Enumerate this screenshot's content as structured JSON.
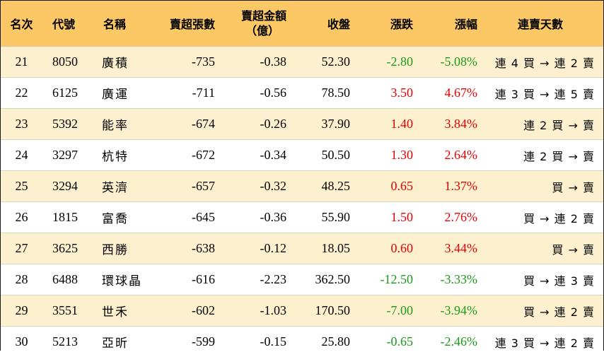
{
  "colors": {
    "header_bg": "#fbc865",
    "stripe_bg": "#fdf0cf",
    "up": "#e60000",
    "down": "#1b9a1b"
  },
  "header": {
    "rank": "名次",
    "code": "代號",
    "name": "名稱",
    "net_sell_lots": "賣超張數",
    "net_sell_amount_line1": "賣超金額",
    "net_sell_amount_line2": "（億）",
    "close": "收盤",
    "change": "漲跌",
    "change_pct": "漲幅",
    "streak": "連賣天數"
  },
  "rows": [
    {
      "rank": "21",
      "code": "8050",
      "name": "廣積",
      "lots": "-735",
      "amount": "-0.38",
      "close": "52.30",
      "change": "-2.80",
      "pct": "-5.08%",
      "dir": "neg",
      "streak": "連 4 買 → 連 2 賣"
    },
    {
      "rank": "22",
      "code": "6125",
      "name": "廣運",
      "lots": "-711",
      "amount": "-0.56",
      "close": "78.50",
      "change": "3.50",
      "pct": "4.67%",
      "dir": "pos",
      "streak": "連 3 買 → 連 5 賣"
    },
    {
      "rank": "23",
      "code": "5392",
      "name": "能率",
      "lots": "-674",
      "amount": "-0.26",
      "close": "37.90",
      "change": "1.40",
      "pct": "3.84%",
      "dir": "pos",
      "streak": "連 2 買 → 賣"
    },
    {
      "rank": "24",
      "code": "3297",
      "name": "杭特",
      "lots": "-672",
      "amount": "-0.34",
      "close": "50.50",
      "change": "1.30",
      "pct": "2.64%",
      "dir": "pos",
      "streak": "連 2 買 → 賣"
    },
    {
      "rank": "25",
      "code": "3294",
      "name": "英濟",
      "lots": "-657",
      "amount": "-0.32",
      "close": "48.25",
      "change": "0.65",
      "pct": "1.37%",
      "dir": "pos",
      "streak": "買 → 賣"
    },
    {
      "rank": "26",
      "code": "1815",
      "name": "富喬",
      "lots": "-645",
      "amount": "-0.36",
      "close": "55.90",
      "change": "1.50",
      "pct": "2.76%",
      "dir": "pos",
      "streak": "買 → 連 2 賣"
    },
    {
      "rank": "27",
      "code": "3625",
      "name": "西勝",
      "lots": "-638",
      "amount": "-0.12",
      "close": "18.05",
      "change": "0.60",
      "pct": "3.44%",
      "dir": "pos",
      "streak": "買 → 賣"
    },
    {
      "rank": "28",
      "code": "6488",
      "name": "環球晶",
      "lots": "-616",
      "amount": "-2.23",
      "close": "362.50",
      "change": "-12.50",
      "pct": "-3.33%",
      "dir": "neg",
      "streak": "買 → 連 3 賣"
    },
    {
      "rank": "29",
      "code": "3551",
      "name": "世禾",
      "lots": "-602",
      "amount": "-1.03",
      "close": "170.50",
      "change": "-7.00",
      "pct": "-3.94%",
      "dir": "neg",
      "streak": "買 → 連 2 賣"
    },
    {
      "rank": "30",
      "code": "5213",
      "name": "亞昕",
      "lots": "-599",
      "amount": "-0.15",
      "close": "25.80",
      "change": "-0.65",
      "pct": "-2.46%",
      "dir": "neg",
      "streak": "連 3 買 → 連 2 賣"
    }
  ]
}
